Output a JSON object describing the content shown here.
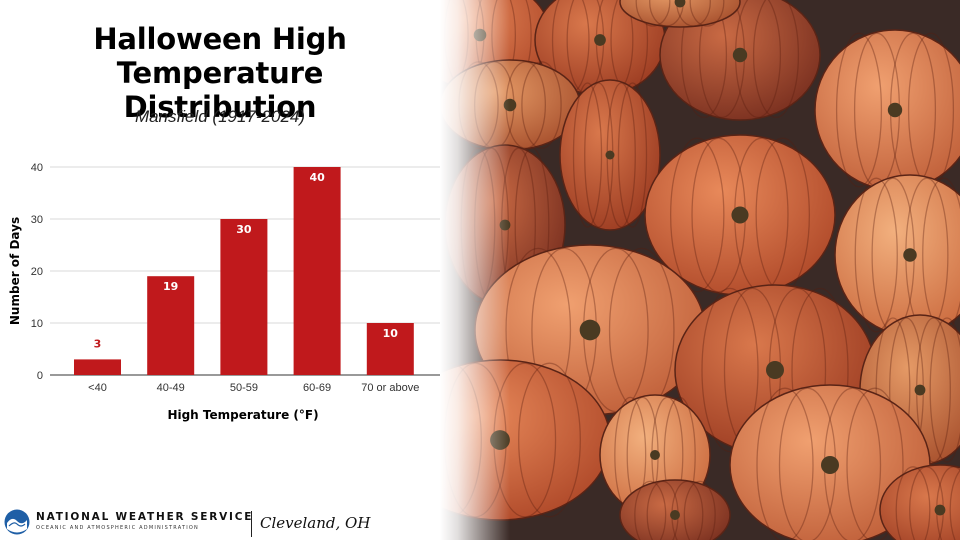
{
  "title_line1": "Halloween High Temperature",
  "title_line2": "Distribution",
  "subtitle": "Mansfield (1917-2024)",
  "chart_data": {
    "type": "bar",
    "categories": [
      "<40",
      "40-49",
      "50-59",
      "60-69",
      "70 or above"
    ],
    "values": [
      3,
      19,
      30,
      40,
      10
    ],
    "value_labels": [
      "3",
      "19",
      "30",
      "40",
      "10"
    ],
    "xlabel": "High Temperature (°F)",
    "ylabel": "Number of Days",
    "ylim": [
      0,
      40
    ],
    "yticks": [
      "0",
      "10",
      "20",
      "30",
      "40"
    ],
    "grid": true,
    "legend": "none",
    "bar_color": "#c0191c",
    "label_color_inside": "#ffffff",
    "label_color_outside": "#c0191c"
  },
  "photo": {
    "icon": "pumpkins-photo"
  },
  "footer": {
    "org_name": "NATIONAL WEATHER SERVICE",
    "org_sub": "OCEANIC AND ATMOSPHERIC ADMINISTRATION",
    "office": "Cleveland, OH",
    "logo_icon": "noaa-logo-icon"
  }
}
